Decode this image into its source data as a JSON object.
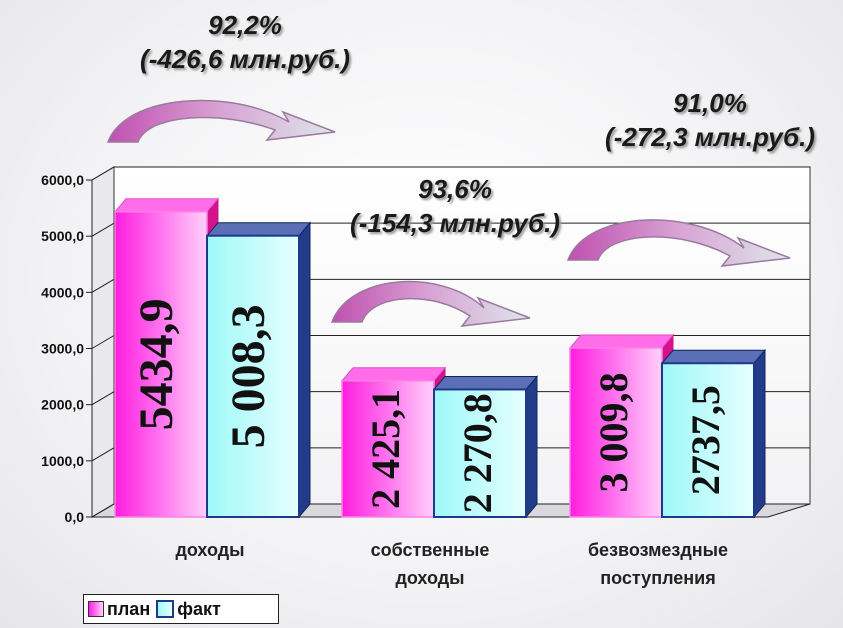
{
  "chart_data": {
    "type": "bar",
    "categories": [
      [
        "доходы"
      ],
      [
        "собственные",
        "доходы"
      ],
      [
        "безвозмездные",
        "поступления"
      ]
    ],
    "series": [
      {
        "name": "план",
        "values": [
          5434.9,
          2425.1,
          3009.8
        ],
        "labels": [
          "5434,9",
          "2 425,1",
          "3 009,8"
        ],
        "color": "#ff4de8"
      },
      {
        "name": "факт",
        "values": [
          5008.3,
          2270.8,
          2737.5
        ],
        "labels": [
          "5 008,3",
          "2 270,8",
          "2737,5"
        ],
        "color": "#7ff2f2"
      }
    ],
    "yticks": [
      "0,0",
      "1000,0",
      "2000,0",
      "3000,0",
      "4000,0",
      "5000,0",
      "6000,0"
    ],
    "ylim": [
      0,
      6000
    ],
    "grid": true,
    "legend_position": "bottom-left",
    "annotations": [
      {
        "percent": "92,2%",
        "delta": "(-426,6 млн.руб.)"
      },
      {
        "percent": "93,6%",
        "delta": "(-154,3 млн.руб.)"
      },
      {
        "percent": "91,0%",
        "delta": "(-272,3 млн.руб.)"
      }
    ]
  }
}
